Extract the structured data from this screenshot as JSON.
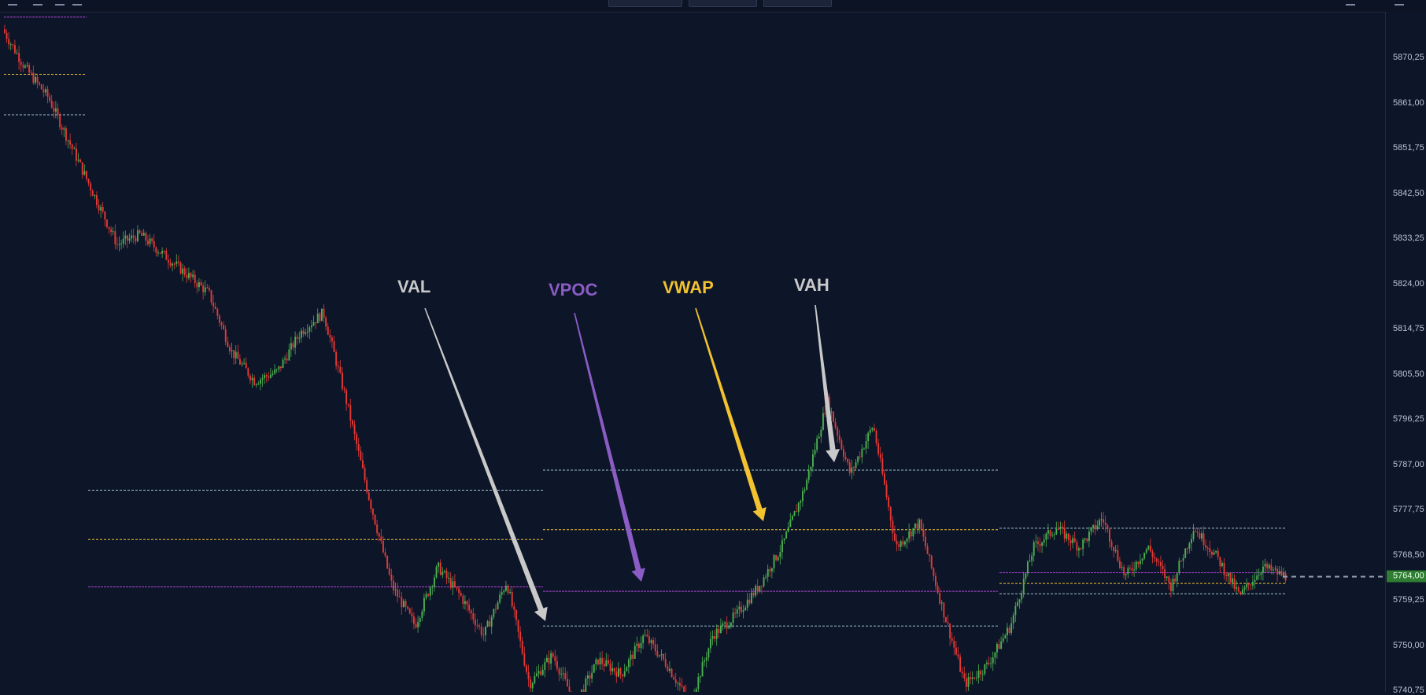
{
  "colors": {
    "background": "#0d1528",
    "up_candle": "#4caf50",
    "down_candle": "#e53935",
    "val_line": "#9ec3cf",
    "vah_line": "#9ec3cf",
    "vwap_line": "#f2c22f",
    "vpoc_line": "#b044d6"
  },
  "annotations": {
    "val": {
      "label": "VAL",
      "color": "#c9c9c9"
    },
    "vpoc": {
      "label": "VPOC",
      "color": "#8a5cc4"
    },
    "vwap": {
      "label": "VWAP",
      "color": "#f2c22f"
    },
    "vah": {
      "label": "VAH",
      "color": "#c9c9c9"
    }
  },
  "chart_data": {
    "type": "candlestick",
    "title": "",
    "xlabel": "",
    "ylabel": "",
    "ylim": [
      5740.75,
      5870.25
    ],
    "grid": false,
    "y_tick_labels": [
      "5870,25",
      "5861,00",
      "5851,75",
      "5842,50",
      "5833,25",
      "5824,00",
      "5814,75",
      "5805,50",
      "5796,25",
      "5787,00",
      "5777,75",
      "5768,50",
      "5759,25",
      "5750,00",
      "5740,75"
    ],
    "last_price": "5764,00",
    "price_path": [
      5876,
      5868,
      5862,
      5852,
      5842,
      5832,
      5834,
      5830,
      5826,
      5822,
      5810,
      5804,
      5806,
      5814,
      5818,
      5800,
      5780,
      5762,
      5754,
      5766,
      5760,
      5752,
      5763,
      5742,
      5748,
      5738,
      5747,
      5744,
      5752,
      5746,
      5738,
      5752,
      5756,
      5762,
      5770,
      5782,
      5800,
      5785,
      5795,
      5770,
      5775,
      5758,
      5742,
      5746,
      5754,
      5770,
      5774,
      5770,
      5776,
      5764,
      5770,
      5762,
      5774,
      5768,
      5760,
      5766,
      5764
    ],
    "sessions": [
      {
        "vah": 5858.5,
        "vwap": 5866.8,
        "vpoc": 5878.5
      },
      {
        "vah": 5781.7,
        "vwap": 5771.6,
        "vpoc": 5761.9
      },
      {
        "vah": 5785.8,
        "vwap": 5773.6,
        "vpoc": 5761.0,
        "val": 5753.9
      },
      {
        "vah": 5773.9,
        "vwap": 5762.6,
        "vpoc": 5764.8,
        "val": 5760.5
      }
    ]
  }
}
